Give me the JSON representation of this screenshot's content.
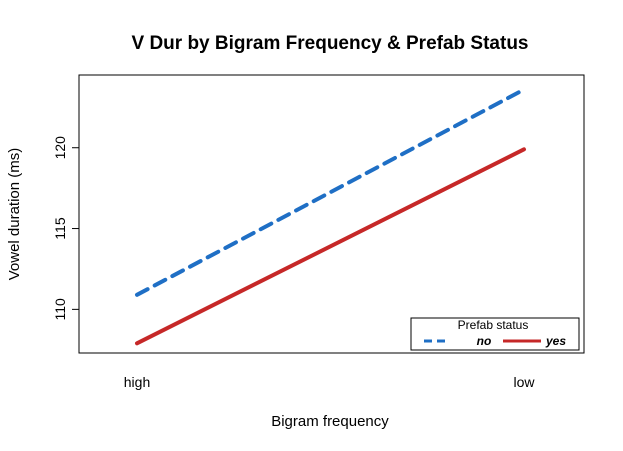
{
  "chart_data": {
    "type": "line",
    "title": "V Dur by Bigram Frequency & Prefab Status",
    "xlabel": "Bigram frequency",
    "ylabel": "Vowel duration (ms)",
    "categories": [
      "high",
      "low"
    ],
    "yticks": [
      110,
      115,
      120
    ],
    "ylim": [
      107.3,
      124.5
    ],
    "grid": false,
    "legend": {
      "title": "Prefab status",
      "placement": "bottom-right"
    },
    "series": [
      {
        "name": "no",
        "values": [
          110.9,
          123.6
        ],
        "color": "#1f6fc5",
        "dash": "dashed"
      },
      {
        "name": "yes",
        "values": [
          107.9,
          119.9
        ],
        "color": "#c62828",
        "dash": "solid"
      }
    ]
  }
}
